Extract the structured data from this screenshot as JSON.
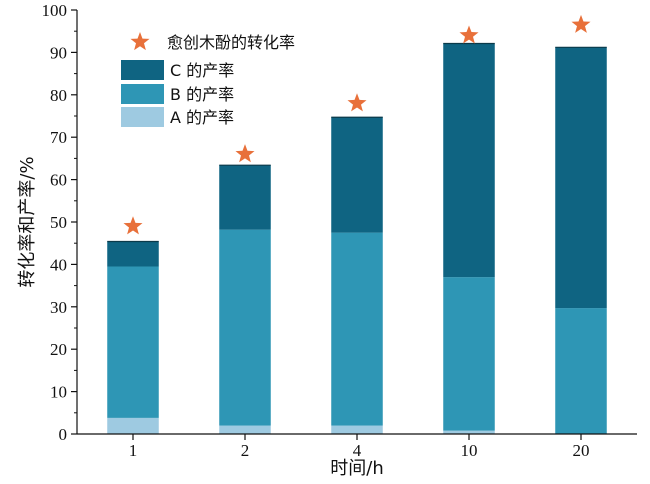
{
  "chart_data": {
    "type": "bar",
    "stacked": true,
    "categories": [
      "1",
      "2",
      "4",
      "10",
      "20"
    ],
    "series": [
      {
        "name": "A 的产率",
        "color": "#9ecae1",
        "values": [
          3.8,
          2.0,
          2.0,
          0.8,
          0.0
        ]
      },
      {
        "name": "B 的产率",
        "color": "#2e96b5",
        "values": [
          35.7,
          46.2,
          45.5,
          36.2,
          29.7
        ]
      },
      {
        "name": "C 的产率",
        "color": "#0f6482",
        "values": [
          5.9,
          15.2,
          27.2,
          55.1,
          61.5
        ]
      }
    ],
    "conversion": {
      "name": "愈创木酚的转化率",
      "color": "#e8703a",
      "marker": "star",
      "values": [
        49,
        66,
        78,
        94,
        96.5
      ]
    },
    "xlabel": "时间/h",
    "ylabel": "转化率和产率/%",
    "ylim": [
      0,
      100
    ],
    "yticks": [
      "0",
      "10",
      "20",
      "30",
      "40",
      "50",
      "60",
      "70",
      "80",
      "90",
      "100"
    ],
    "grid": false,
    "legend_position": "top-left"
  }
}
